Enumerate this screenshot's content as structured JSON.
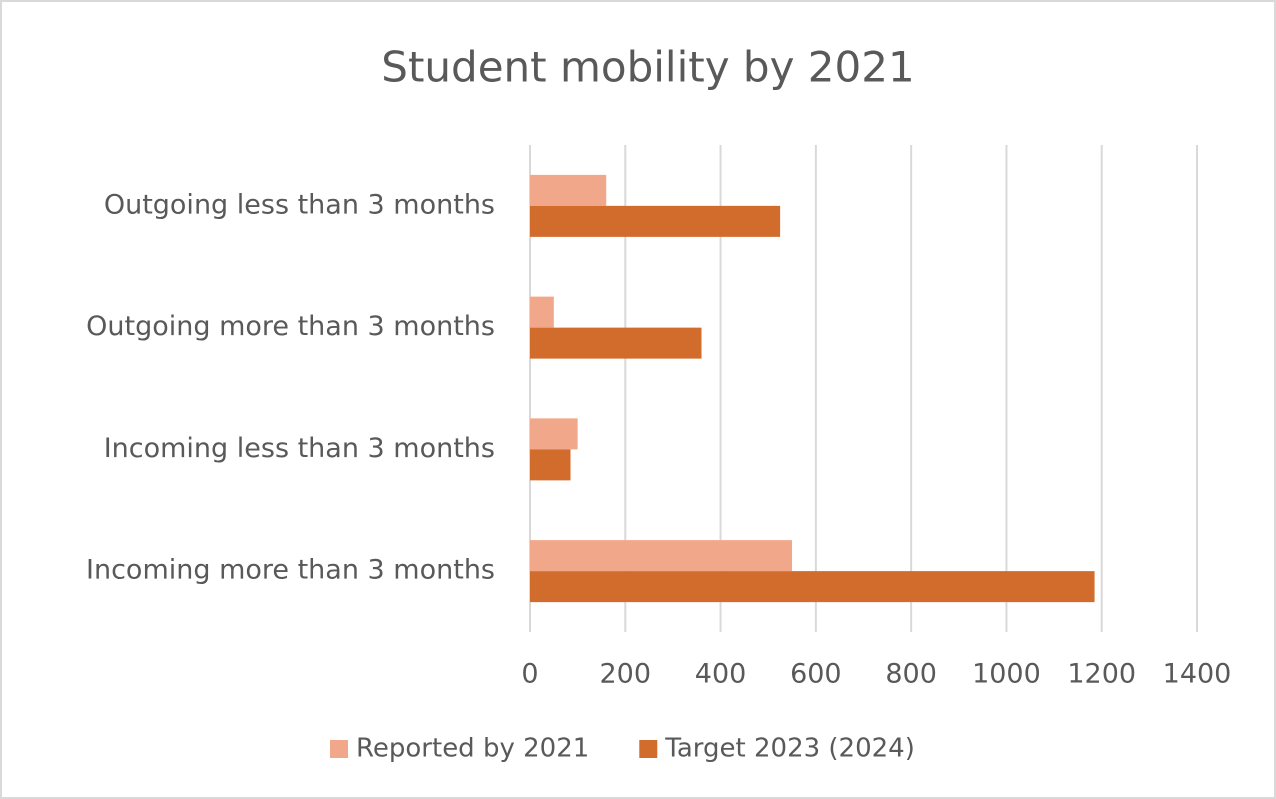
{
  "chart_data": {
    "type": "bar",
    "orientation": "horizontal",
    "title": "Student mobility by 2021",
    "categories": [
      "Outgoing less than 3 months",
      "Outgoing more than 3 months",
      "Incoming less than 3 months",
      "Incoming more than 3 months"
    ],
    "series": [
      {
        "name": "Reported by 2021",
        "color": "#f1a88a",
        "values": [
          160,
          50,
          100,
          550
        ]
      },
      {
        "name": "Target 2023 (2024)",
        "color": "#d26c2c",
        "values": [
          525,
          360,
          85,
          1185
        ]
      }
    ],
    "xlim": [
      0,
      1400
    ],
    "xticks": [
      0,
      200,
      400,
      600,
      800,
      1000,
      1200,
      1400
    ],
    "grid": true,
    "legend": "bottom"
  }
}
